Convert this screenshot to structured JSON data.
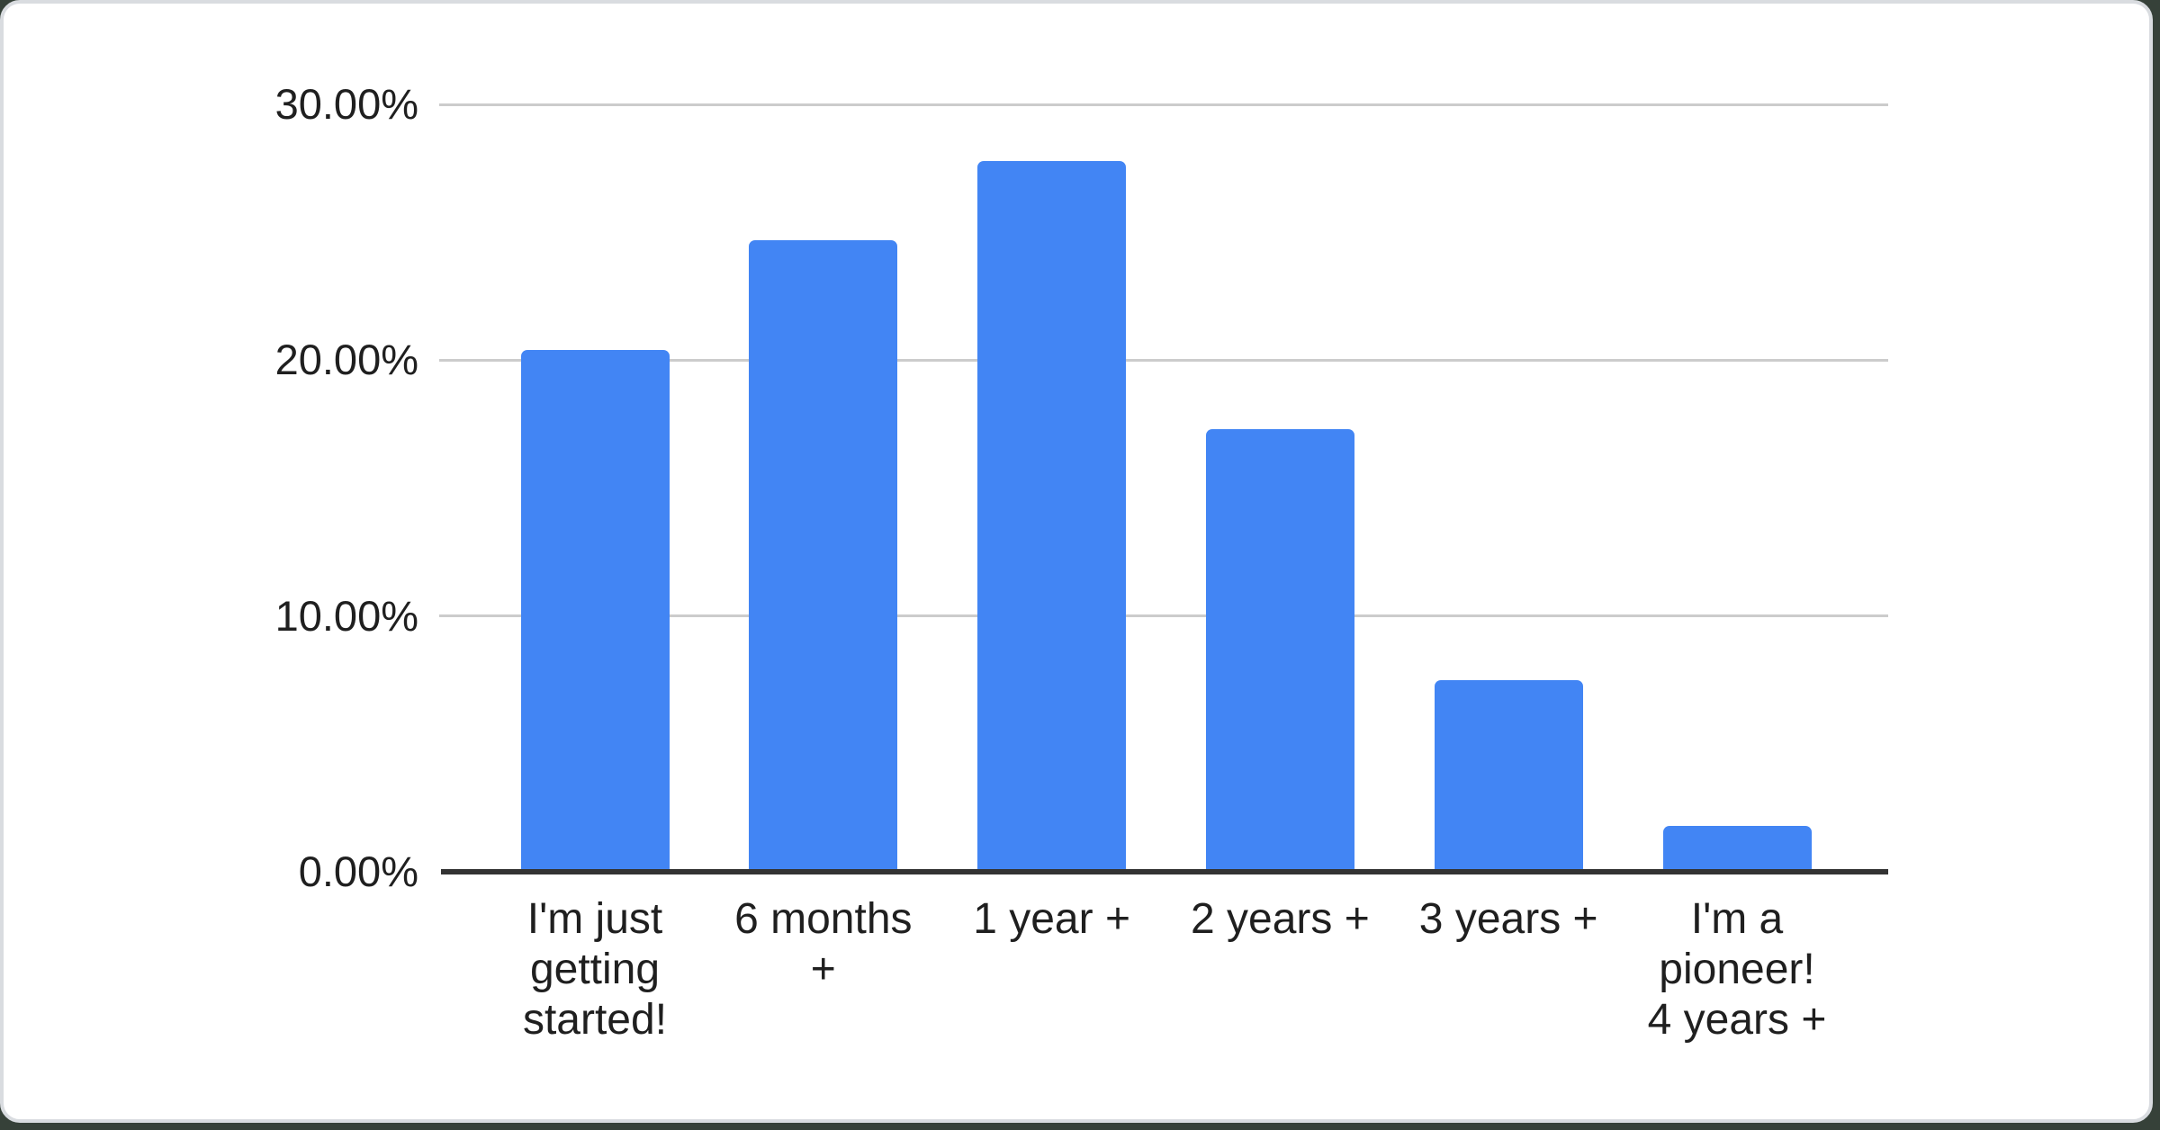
{
  "card": {
    "background": "#ffffff",
    "border_color": "#d9dce0",
    "outside_color": "#364139"
  },
  "chart_data": {
    "type": "bar",
    "title": "",
    "xlabel": "",
    "ylabel": "",
    "categories": [
      "I'm just getting started!",
      "6 months +",
      "1 year +",
      "2 years +",
      "3 years +",
      "I'm a pioneer! 4 years +"
    ],
    "category_lines": [
      [
        "I'm just",
        "getting",
        "started!"
      ],
      [
        "6 months",
        "+"
      ],
      [
        "1 year +"
      ],
      [
        "2 years +"
      ],
      [
        "3 years +"
      ],
      [
        "I'm a",
        "pioneer!",
        "4 years +"
      ]
    ],
    "values": [
      20.4,
      24.7,
      27.8,
      17.3,
      7.5,
      1.8
    ],
    "unit": "%",
    "ylim": [
      0,
      30
    ],
    "y_ticks": [
      {
        "label": "30.00%",
        "value": 30
      },
      {
        "label": "20.00%",
        "value": 20
      },
      {
        "label": "10.00%",
        "value": 10
      },
      {
        "label": "0.00%",
        "value": 0
      }
    ],
    "grid": true,
    "legend_position": "none",
    "bar_color": "#4285f4",
    "gridline_color": "#cccccc",
    "axis_line_color": "#333333",
    "label_color": "#1f1f1f"
  }
}
